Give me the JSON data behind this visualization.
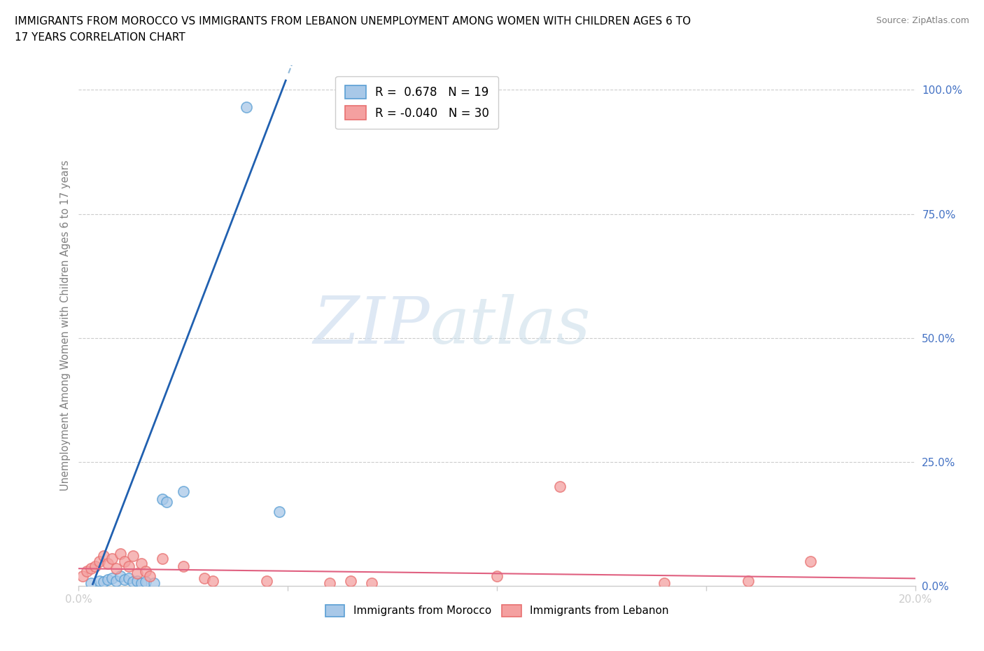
{
  "title_line1": "IMMIGRANTS FROM MOROCCO VS IMMIGRANTS FROM LEBANON UNEMPLOYMENT AMONG WOMEN WITH CHILDREN AGES 6 TO",
  "title_line2": "17 YEARS CORRELATION CHART",
  "source": "Source: ZipAtlas.com",
  "ylabel": "Unemployment Among Women with Children Ages 6 to 17 years",
  "xlim": [
    0.0,
    0.2
  ],
  "ylim": [
    0.0,
    1.05
  ],
  "ytick_labels": [
    "0.0%",
    "25.0%",
    "50.0%",
    "75.0%",
    "100.0%"
  ],
  "ytick_positions": [
    0.0,
    0.25,
    0.5,
    0.75,
    1.0
  ],
  "watermark_zip": "ZIP",
  "watermark_atlas": "atlas",
  "legend_r1": "R =  0.678   N = 19",
  "legend_r2": "R = -0.040   N = 30",
  "morocco_color": "#a8c8e8",
  "lebanon_color": "#f4a0a0",
  "morocco_edge_color": "#5a9fd4",
  "lebanon_edge_color": "#e87070",
  "morocco_trend_color": "#2060b0",
  "lebanon_trend_color": "#e06080",
  "morocco_trend_dashed_color": "#90b8d8",
  "morocco_x": [
    0.003,
    0.005,
    0.006,
    0.007,
    0.008,
    0.009,
    0.01,
    0.011,
    0.012,
    0.013,
    0.014,
    0.015,
    0.016,
    0.018,
    0.02,
    0.021,
    0.025,
    0.04,
    0.048
  ],
  "morocco_y": [
    0.005,
    0.01,
    0.008,
    0.012,
    0.015,
    0.01,
    0.02,
    0.012,
    0.015,
    0.008,
    0.01,
    0.005,
    0.008,
    0.005,
    0.175,
    0.17,
    0.19,
    0.965,
    0.15
  ],
  "lebanon_x": [
    0.001,
    0.002,
    0.003,
    0.004,
    0.005,
    0.006,
    0.007,
    0.008,
    0.009,
    0.01,
    0.011,
    0.012,
    0.013,
    0.014,
    0.015,
    0.016,
    0.017,
    0.02,
    0.025,
    0.03,
    0.032,
    0.045,
    0.06,
    0.065,
    0.07,
    0.1,
    0.115,
    0.14,
    0.16,
    0.175
  ],
  "lebanon_y": [
    0.02,
    0.03,
    0.035,
    0.04,
    0.05,
    0.06,
    0.045,
    0.055,
    0.035,
    0.065,
    0.05,
    0.04,
    0.06,
    0.025,
    0.045,
    0.03,
    0.02,
    0.055,
    0.04,
    0.015,
    0.01,
    0.01,
    0.005,
    0.01,
    0.005,
    0.02,
    0.2,
    0.005,
    0.01,
    0.05
  ],
  "morocco_trend_slope": 22.0,
  "morocco_trend_intercept": -0.07,
  "lebanon_trend_slope": -0.1,
  "lebanon_trend_intercept": 0.035
}
